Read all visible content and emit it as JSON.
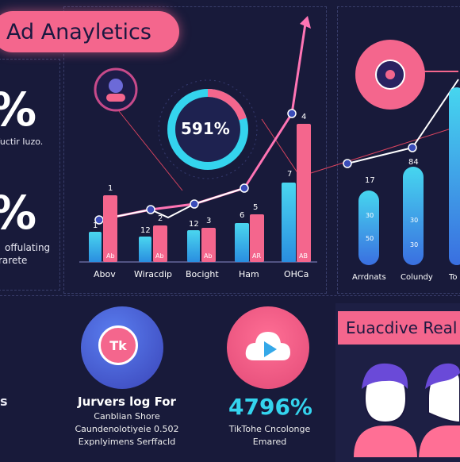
{
  "header": {
    "title": "Ad Anayletics"
  },
  "left_panel": {
    "stat1_value": "%",
    "stat1_label": "fuctir Iuzo.",
    "stat2_value": "%",
    "stat2_label1": "offulating",
    "stat2_label2": "rarete"
  },
  "gauge": {
    "value": "591%"
  },
  "chart1": {
    "categories": [
      "Abov",
      "Wiracdip",
      "Bocight",
      "Ham",
      "OHCa"
    ],
    "pink_labels": [
      "1",
      "2",
      "3",
      "5",
      "4"
    ],
    "cyan_labels": [
      "1",
      "12",
      "12",
      "6",
      "7"
    ],
    "bar_inner_labels": [
      "Ab",
      "Ab",
      "Ab",
      "AR",
      "AB"
    ]
  },
  "chart2": {
    "categories": [
      "Arrdnats",
      "Colundy",
      "To"
    ],
    "top_labels": [
      "17",
      "84",
      ""
    ],
    "inner_labels": [
      "30",
      "30",
      ""
    ],
    "inner_labels_low": [
      "50",
      "30",
      ""
    ]
  },
  "bottom": {
    "tiktok_badge": "Tk",
    "card1_heading": "Jurvers log For",
    "card1_line1": "Canblian Shore",
    "card1_line2": "Caundenolotiyeie 0.502",
    "card1_line3": "Expnlyimens Serffacld",
    "card2_value": "4796%",
    "card2_line1": "TikTohe Cncolonge",
    "card2_line2": "Emared",
    "left_partial": "s",
    "right_title": "Euacdive Real"
  },
  "colors": {
    "pink": "#f4668d",
    "cyan": "#34d4ee",
    "bg": "#181a3a"
  }
}
